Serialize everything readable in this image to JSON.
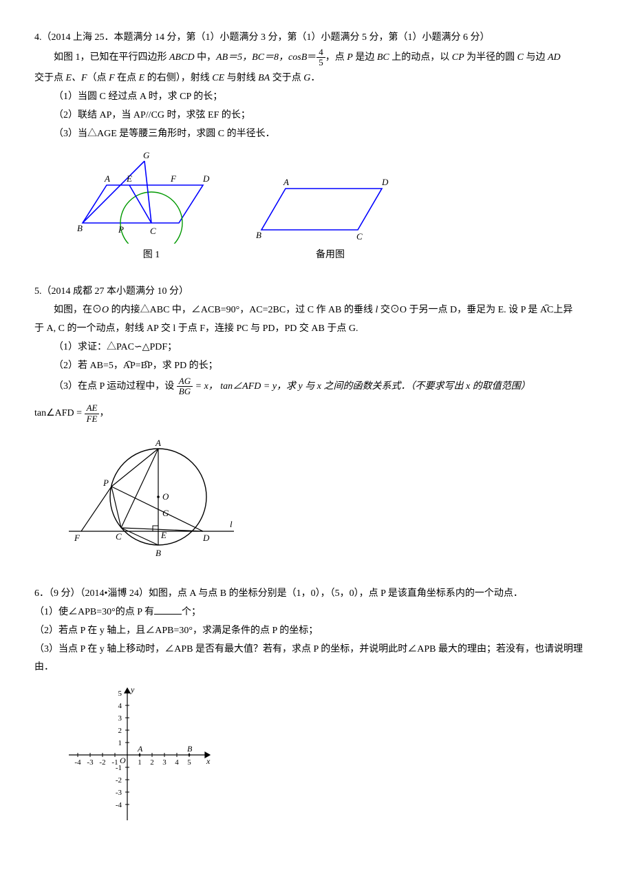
{
  "p4": {
    "header": "4.（2014 上海 25．本题满分 14 分，第（1）小题满分 3 分，第（1）小题满分 5 分，第（1）小题满分 6 分）",
    "intro_a": "如图 1，已知在平行四边形 ",
    "abcd": "ABCD",
    "intro_b": " 中，",
    "ab_eq": "AB＝5，",
    "bc_eq": "BC＝8，cos",
    "cosb": "B",
    "eq": "＝",
    "frac_num": "4",
    "frac_den": "5",
    "intro_c": "，点 ",
    "p": "P",
    "intro_d": " 是边 ",
    "bc2": "BC",
    "intro_e": " 上的动点，以 ",
    "cp": "CP",
    "intro_f": " 为半径的圆 ",
    "c": "C",
    "intro_g": " 与边 ",
    "ad": "AD",
    "line2a": "交于点 ",
    "ef": "E、F",
    "line2b": "（点 ",
    "f": "F",
    "line2c": " 在点 ",
    "e": "E",
    "line2d": " 的右侧），射线 ",
    "ce": "CE",
    "line2e": " 与射线 ",
    "ba": "BA",
    "line2f": " 交于点 ",
    "g": "G",
    "line2g": "．",
    "q1": "（1）当圆 C 经过点 A 时，求 CP 的长；",
    "q2": "（2）联结 AP，当 AP//CG 时，求弦 EF 的长；",
    "q3": "（3）当△AGE 是等腰三角形时，求圆 C 的半径长．",
    "fig1_label": "图 1",
    "fig2_label": "备用图",
    "labels": {
      "A": "A",
      "B": "B",
      "C": "C",
      "D": "D",
      "E": "E",
      "F": "F",
      "G": "G",
      "P": "P"
    }
  },
  "p5": {
    "header": "5.（2014 成都 27 本小题满分 10 分）",
    "intro_a": "如图，在⊙",
    "o": "O",
    "intro_b": " 的内接△ABC 中，∠ACB=90°，AC=2BC，过 C 作 AB 的垂线 ",
    "l": "l",
    "intro_c": " 交⊙O 于另一点 D，垂足为 E. 设 P 是 ",
    "arc_ac": "AC",
    "intro_d": "上异",
    "line2": "于 A, C 的一个动点，射线 AP 交 l 于点 F，连接 PC 与 PD，PD 交 AB 于点 G.",
    "q1": "（1）求证：△PAC∽△PDF；",
    "q2a": "（2）若 AB=5，",
    "arc_ap": "AP",
    "q2_eq": "=",
    "arc_bp": "BP",
    "q2b": "，求 PD 的长；",
    "q3a": "（3）在点 P 运动过程中，设 ",
    "frac1_num": "AG",
    "frac1_den": "BG",
    "q3b": " = x，  tan∠AFD = y，求 y 与 x 之间的函数关系式．（不要求写出 x 的取值范围）",
    "tan_a": "tan∠AFD = ",
    "frac2_num": "AE",
    "frac2_den": "FE",
    "tan_b": "，",
    "labels": {
      "A": "A",
      "B": "B",
      "C": "C",
      "D": "D",
      "E": "E",
      "F": "F",
      "G": "G",
      "O": "O",
      "P": "P",
      "l": "l"
    }
  },
  "p6": {
    "header": "6．（9 分）（2014•淄博 24）如图，点 A 与点 B 的坐标分别是（1，0），（5，0），点 P 是该直角坐标系内的一个动点．",
    "q1a": "（1）使∠APB=30°的点 P 有",
    "q1b": "个；",
    "q2": "（2）若点 P 在 y 轴上，且∠APB=30°，求满足条件的点 P 的坐标；",
    "q3": "（3）当点 P 在 y 轴上移动时，∠APB 是否有最大值？若有，求点 P 的坐标，并说明此时∠APB 最大的理由；若没有，也请说明理由．",
    "axis": {
      "x_ticks": [
        "-4",
        "-3",
        "-2",
        "-1",
        "1",
        "2",
        "3",
        "4",
        "5"
      ],
      "y_ticks_pos": [
        "1",
        "2",
        "3",
        "4",
        "5"
      ],
      "y_ticks_neg": [
        "-1",
        "-2",
        "-3",
        "-4"
      ],
      "O": "O",
      "x": "x",
      "y": "y",
      "A": "A",
      "B": "B"
    }
  },
  "style": {
    "stroke_blue": "#0000ff",
    "stroke_green": "#009900",
    "stroke_black": "#000000",
    "stroke_width_shape": 1.6,
    "stroke_width_thin": 1.2,
    "font_label": "italic 13px serif"
  }
}
